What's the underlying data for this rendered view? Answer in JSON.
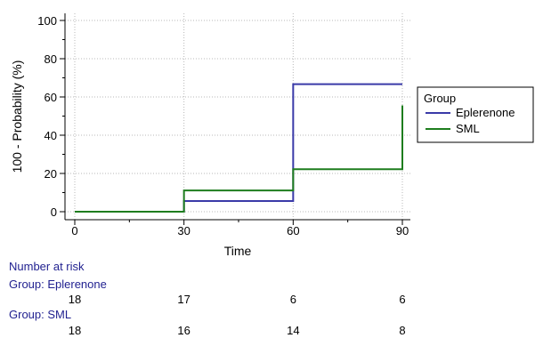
{
  "chart_data": {
    "type": "line",
    "step": true,
    "xlabel": "Time",
    "ylabel": "100 - Probability (%)",
    "xlim": [
      0,
      90
    ],
    "ylim": [
      -3,
      103
    ],
    "xticks": [
      0,
      30,
      60,
      90
    ],
    "yticks": [
      0,
      20,
      40,
      60,
      80,
      100
    ],
    "grid": true,
    "legend": {
      "title": "Group",
      "placement": "right"
    },
    "series": [
      {
        "name": "Eplerenone",
        "color": "#3a3aa8",
        "x": [
          0,
          30,
          60,
          90
        ],
        "y": [
          0,
          5.6,
          66.7,
          66.7
        ]
      },
      {
        "name": "SML",
        "color": "#1e7d1e",
        "x": [
          0,
          30,
          60,
          90,
          90
        ],
        "y": [
          0,
          11.1,
          22.2,
          22.2,
          55.6
        ]
      }
    ]
  },
  "risk_table": {
    "title": "Number at risk",
    "groups": [
      {
        "label": "Group: Eplerenone",
        "counts": [
          "18",
          "17",
          "6",
          "6"
        ]
      },
      {
        "label": "Group: SML",
        "counts": [
          "18",
          "16",
          "14",
          "8"
        ]
      }
    ]
  }
}
